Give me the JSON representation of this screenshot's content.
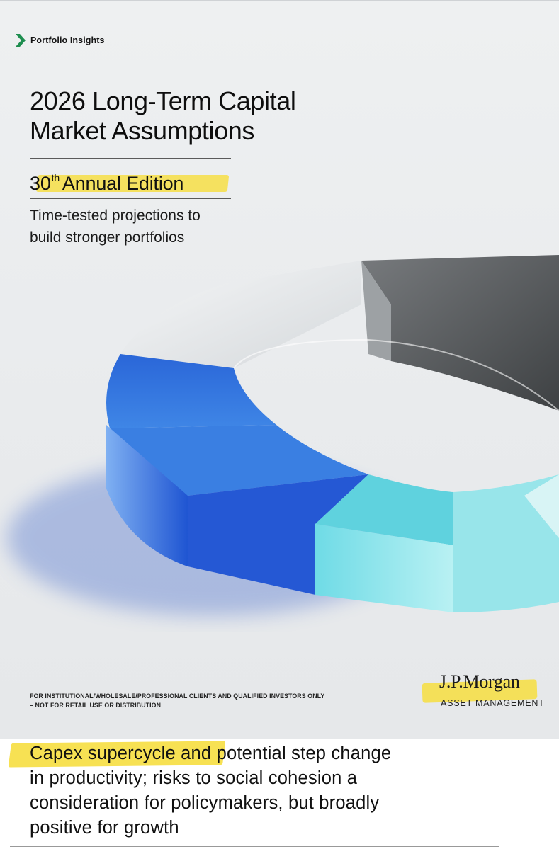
{
  "header": {
    "brand_icon": "green-chevron-icon",
    "brand_label": "Portfolio Insights"
  },
  "cover": {
    "title_line1": "2026 Long-Term Capital",
    "title_line2": "Market Assumptions",
    "edition_number": "30",
    "edition_suffix": "th",
    "edition_text": "Annual Edition",
    "subtitle_line1": "Time-tested projections to",
    "subtitle_line2": "build stronger portfolios",
    "disclaimer_line1": "FOR INSTITUTIONAL/WHOLESALE/PROFESSIONAL CLIENTS AND QUALIFIED INVESTORS ONLY",
    "disclaimer_line2": "– NOT FOR RETAIL USE OR DISTRIBUTION",
    "logo_name": "J.P.Morgan",
    "logo_sub": "ASSET MANAGEMENT"
  },
  "caption": {
    "line1": "Capex supercycle and potential step change",
    "line2": "in productivity; risks to social cohesion a",
    "line3": "consideration for policymakers, but broadly",
    "line4": "positive for growth"
  },
  "colors": {
    "brand_green": "#1e8e4f",
    "highlight_yellow": "#f6de40",
    "ring_blue": "#2f6fd8",
    "ring_cyan": "#5fd6e0",
    "ring_gray": "#5c5f62"
  }
}
